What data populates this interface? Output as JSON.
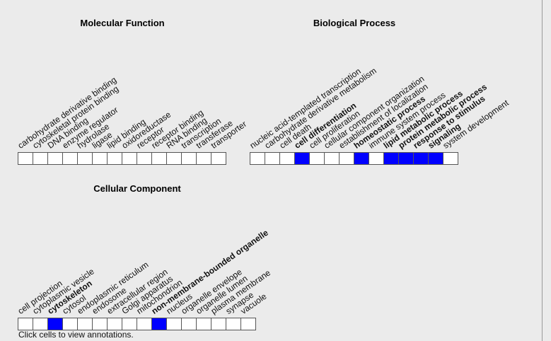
{
  "molecular_function": {
    "title": "Molecular Function",
    "terms": [
      {
        "label": "carbohydrate derivative binding",
        "bold": false,
        "selected": false
      },
      {
        "label": "cytoskeletal protein binding",
        "bold": false,
        "selected": false
      },
      {
        "label": "DNA binding",
        "bold": false,
        "selected": false
      },
      {
        "label": "enzyme regulator",
        "bold": false,
        "selected": false
      },
      {
        "label": "hydrolase",
        "bold": false,
        "selected": false
      },
      {
        "label": "ligase",
        "bold": false,
        "selected": false
      },
      {
        "label": "lipid binding",
        "bold": false,
        "selected": false
      },
      {
        "label": "oxidoreductase",
        "bold": false,
        "selected": false
      },
      {
        "label": "receptor",
        "bold": false,
        "selected": false
      },
      {
        "label": "receptor binding",
        "bold": false,
        "selected": false
      },
      {
        "label": "RNA binding",
        "bold": false,
        "selected": false
      },
      {
        "label": "transcription",
        "bold": false,
        "selected": false
      },
      {
        "label": "transferase",
        "bold": false,
        "selected": false
      },
      {
        "label": "transporter",
        "bold": false,
        "selected": false
      }
    ]
  },
  "biological_process": {
    "title": "Biological Process",
    "terms": [
      {
        "label": "nucleic acid-templated transcription",
        "bold": false,
        "selected": false
      },
      {
        "label": "carbohydrate derivative metabolism",
        "bold": false,
        "selected": false
      },
      {
        "label": "cell death",
        "bold": false,
        "selected": false
      },
      {
        "label": "cell differentiation",
        "bold": true,
        "selected": true
      },
      {
        "label": "cell proliferation",
        "bold": false,
        "selected": false
      },
      {
        "label": "cellular component organization",
        "bold": false,
        "selected": false
      },
      {
        "label": "establishment of localization",
        "bold": false,
        "selected": false
      },
      {
        "label": "homeostatic process",
        "bold": true,
        "selected": true
      },
      {
        "label": "immune system process",
        "bold": false,
        "selected": false
      },
      {
        "label": "lipid metabolic process",
        "bold": true,
        "selected": true
      },
      {
        "label": "protein metabolic process",
        "bold": true,
        "selected": true
      },
      {
        "label": "response to stimulus",
        "bold": true,
        "selected": true
      },
      {
        "label": "signaling",
        "bold": true,
        "selected": true
      },
      {
        "label": "system development",
        "bold": false,
        "selected": false
      }
    ]
  },
  "cellular_component": {
    "title": "Cellular Component",
    "terms": [
      {
        "label": "cell projection",
        "bold": false,
        "selected": false
      },
      {
        "label": "cytoplasmic vesicle",
        "bold": false,
        "selected": false
      },
      {
        "label": "cytoskeleton",
        "bold": true,
        "selected": true
      },
      {
        "label": "cytosol",
        "bold": false,
        "selected": false
      },
      {
        "label": "endoplasmic reticulum",
        "bold": false,
        "selected": false
      },
      {
        "label": "endosome",
        "bold": false,
        "selected": false
      },
      {
        "label": "extracellular region",
        "bold": false,
        "selected": false
      },
      {
        "label": "Golgi apparatus",
        "bold": false,
        "selected": false
      },
      {
        "label": "mitochondrion",
        "bold": false,
        "selected": false
      },
      {
        "label": "non-membrane-bounded organelle",
        "bold": true,
        "selected": true
      },
      {
        "label": "nucleus",
        "bold": false,
        "selected": false
      },
      {
        "label": "organelle envelope",
        "bold": false,
        "selected": false
      },
      {
        "label": "organelle lumen",
        "bold": false,
        "selected": false
      },
      {
        "label": "plasma membrane",
        "bold": false,
        "selected": false
      },
      {
        "label": "synapse",
        "bold": false,
        "selected": false
      },
      {
        "label": "vacuole",
        "bold": false,
        "selected": false
      }
    ]
  },
  "footer": {
    "text": "Click cells to view annotations."
  },
  "colors": {
    "selected": "#0000ff",
    "empty": "#ffffff",
    "background": "#ebebeb"
  }
}
